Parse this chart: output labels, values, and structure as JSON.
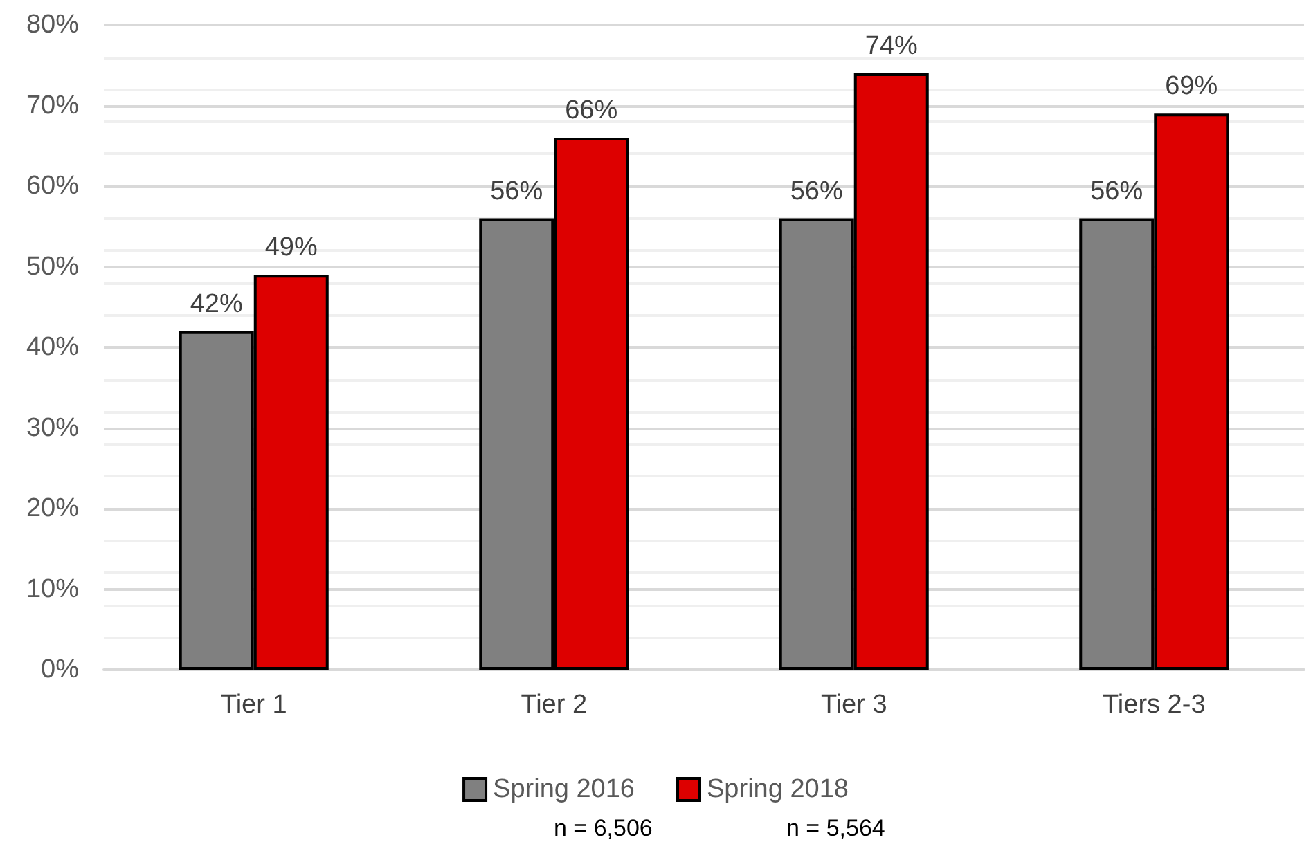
{
  "chart_data": {
    "type": "bar",
    "categories": [
      "Tier 1",
      "Tier 2",
      "Tier 3",
      "Tiers 2-3"
    ],
    "series": [
      {
        "name": "Spring 2016",
        "color": "#808080",
        "values": [
          42,
          56,
          56,
          56
        ],
        "value_labels": [
          "42%",
          "56%",
          "56%",
          "56%"
        ]
      },
      {
        "name": "Spring 2018",
        "color": "#dd0000",
        "values": [
          49,
          66,
          74,
          69
        ],
        "value_labels": [
          "49%",
          "66%",
          "74%",
          "69%"
        ]
      }
    ],
    "ylim": [
      0,
      80
    ],
    "yticks": [
      {
        "value": 0,
        "label": "0%"
      },
      {
        "value": 10,
        "label": "10%"
      },
      {
        "value": 20,
        "label": "20%"
      },
      {
        "value": 30,
        "label": "30%"
      },
      {
        "value": 40,
        "label": "40%"
      },
      {
        "value": 50,
        "label": "50%"
      },
      {
        "value": 60,
        "label": "60%"
      },
      {
        "value": 70,
        "label": "70%"
      },
      {
        "value": 80,
        "label": "80%"
      }
    ],
    "grid": "y",
    "legend": "bottom",
    "annotations": [
      "n = 6,506",
      "n = 5,564"
    ]
  }
}
